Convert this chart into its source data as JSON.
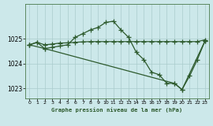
{
  "title": "Graphe pression niveau de la mer (hPa)",
  "background_color": "#cce8ea",
  "plot_bg_color": "#cce8ea",
  "grid_color": "#aacccc",
  "line_color": "#2d5a2d",
  "xlim": [
    -0.5,
    23.5
  ],
  "ylim": [
    1022.6,
    1026.4
  ],
  "yticks": [
    1023,
    1024,
    1025
  ],
  "xticks": [
    0,
    1,
    2,
    3,
    4,
    5,
    6,
    7,
    8,
    9,
    10,
    11,
    12,
    13,
    14,
    15,
    16,
    17,
    18,
    19,
    20,
    21,
    22,
    23
  ],
  "series_peak_x": [
    0,
    1,
    2,
    3,
    4,
    5,
    6,
    7,
    8,
    9,
    10,
    11,
    12,
    13,
    14,
    15,
    16,
    17,
    18,
    19,
    20,
    21,
    22,
    23
  ],
  "series_peak_y": [
    1024.75,
    1024.85,
    1024.6,
    1024.65,
    1024.7,
    1024.75,
    1025.05,
    1025.2,
    1025.35,
    1025.45,
    1025.65,
    1025.7,
    1025.35,
    1025.05,
    1024.45,
    1024.15,
    1023.65,
    1023.55,
    1023.2,
    1023.2,
    1022.95,
    1023.5,
    1024.15,
    1024.9
  ],
  "series_flat_x": [
    0,
    1,
    2,
    3,
    4,
    5,
    6,
    7,
    8,
    9,
    10,
    11,
    12,
    13,
    14,
    15,
    16,
    17,
    18,
    19,
    20,
    21,
    22,
    23
  ],
  "series_flat_y": [
    1024.75,
    1024.85,
    1024.75,
    1024.78,
    1024.82,
    1024.83,
    1024.85,
    1024.87,
    1024.88,
    1024.88,
    1024.88,
    1024.88,
    1024.88,
    1024.88,
    1024.88,
    1024.88,
    1024.88,
    1024.88,
    1024.88,
    1024.88,
    1024.88,
    1024.88,
    1024.88,
    1024.95
  ],
  "series_tri_x": [
    0,
    2,
    19,
    20,
    23
  ],
  "series_tri_y": [
    1024.75,
    1024.6,
    1023.2,
    1022.95,
    1024.9
  ]
}
